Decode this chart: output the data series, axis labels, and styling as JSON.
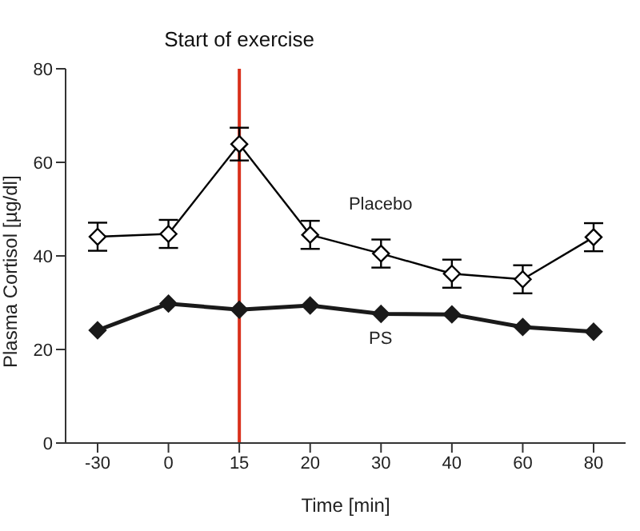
{
  "chart_data": {
    "type": "line",
    "xlabel": "Time [min]",
    "ylabel": "Plasma Cortisol [µg/dl]",
    "categories": [
      "-30",
      "0",
      "15",
      "20",
      "30",
      "40",
      "60",
      "80"
    ],
    "series": [
      {
        "name": "Placebo",
        "color": "#000000",
        "marker": "diamond",
        "values": [
          44.1,
          44.7,
          63.9,
          44.5,
          40.5,
          36.2,
          35,
          44
        ],
        "errors": [
          3,
          3,
          3.5,
          3,
          3,
          3,
          3,
          3
        ]
      },
      {
        "name": "PS",
        "color": "#1a1a1a",
        "marker": "diamond",
        "values": [
          24.1,
          29.8,
          28.5,
          29.4,
          27.6,
          27.5,
          24.8,
          23.8
        ]
      }
    ],
    "ylim": [
      0,
      80
    ],
    "yticks": [
      0,
      20,
      40,
      60,
      80
    ],
    "grid": false,
    "legend": false,
    "ref_lines": [
      {
        "axis": "x",
        "value": "15",
        "label": "Start of exercise",
        "color": "#d9301c"
      }
    ]
  }
}
